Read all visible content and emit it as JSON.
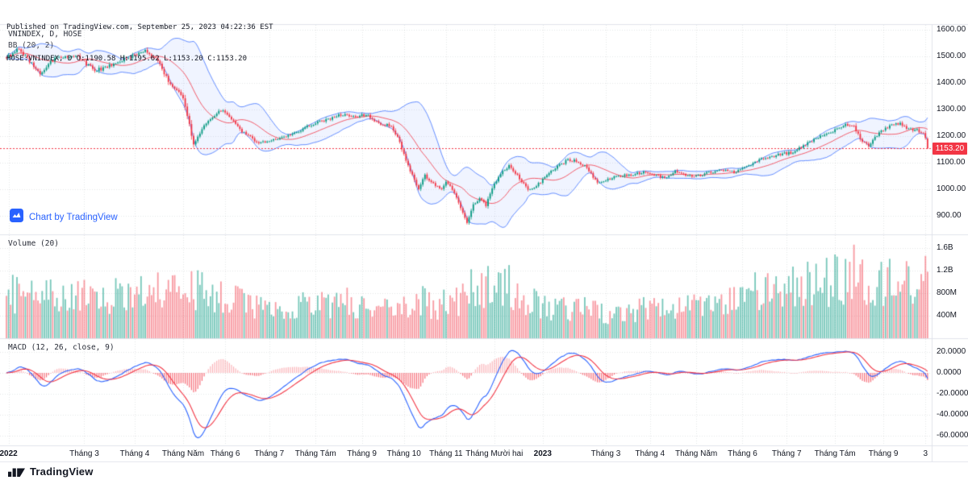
{
  "header": {
    "published_line": "Published on TradingView.com, September 25, 2023 04:22:36 EST",
    "symbol_line": "HOSE:VNINDEX, D O:1190.58 H:1195.62 L:1153.20 C:1153.20"
  },
  "price_panel": {
    "legend_symbol": "VNINDEX, D, HOSE",
    "legend_bb": "BB (20, 2)",
    "watermark_text": "Chart by TradingView"
  },
  "volume_panel": {
    "legend": "Volume (20)"
  },
  "macd_panel": {
    "legend": "MACD (12, 26, close, 9)"
  },
  "footer": {
    "brand": "TradingView"
  },
  "colors": {
    "up": "#089981",
    "down": "#f23645",
    "bb_line": "rgba(41,98,255,0.8)",
    "bb_fill": "rgba(41,98,255,0.07)",
    "bb_basis": "rgba(242,54,69,0.9)",
    "macd_line": "#2962ff",
    "macd_signal": "#f23645",
    "hist_pos": "rgba(242,54,69,0.38)",
    "hist_neg": "rgba(242,54,69,0.72)",
    "vol_up": "rgba(8,153,129,0.55)",
    "vol_down": "rgba(242,54,69,0.5)",
    "grid": "rgba(42,46,57,0.12)",
    "divider": "#e0e3eb",
    "last_price": "#f23645"
  },
  "chart_data": {
    "type": "candlestick",
    "title": "VNINDEX, D, HOSE",
    "panels": [
      "price+bollinger(20,2)",
      "volume(20)",
      "macd(12,26,close,9)"
    ],
    "symbol": "VNINDEX",
    "interval": "D",
    "exchange": "HOSE",
    "days_total": 439,
    "render_seed": 5,
    "last_candle": {
      "open": 1190.58,
      "high": 1195.62,
      "low": 1153.2,
      "close": 1153.2
    },
    "last_price": 1153.2,
    "last_price_label": "1153.20",
    "indicators": {
      "bollinger": {
        "length": 20,
        "mult": 2
      },
      "volume_ma_length": 20,
      "macd": {
        "fast": 12,
        "slow": 26,
        "source": "close",
        "signal": 9
      }
    },
    "price_anchors": [
      [
        0,
        1498
      ],
      [
        6,
        1526
      ],
      [
        16,
        1438
      ],
      [
        24,
        1500
      ],
      [
        34,
        1498
      ],
      [
        42,
        1446
      ],
      [
        50,
        1466
      ],
      [
        58,
        1498
      ],
      [
        66,
        1524
      ],
      [
        72,
        1482
      ],
      [
        79,
        1380
      ],
      [
        84,
        1348
      ],
      [
        89,
        1171
      ],
      [
        94,
        1240
      ],
      [
        100,
        1288
      ],
      [
        104,
        1292
      ],
      [
        112,
        1218
      ],
      [
        120,
        1172
      ],
      [
        128,
        1186
      ],
      [
        136,
        1206
      ],
      [
        144,
        1242
      ],
      [
        152,
        1262
      ],
      [
        160,
        1282
      ],
      [
        166,
        1275
      ],
      [
        171,
        1282
      ],
      [
        177,
        1250
      ],
      [
        183,
        1238
      ],
      [
        187,
        1180
      ],
      [
        189,
        1130
      ],
      [
        191,
        1086
      ],
      [
        196,
        1000
      ],
      [
        199,
        1052
      ],
      [
        203,
        1022
      ],
      [
        207,
        997
      ],
      [
        209,
        1027
      ],
      [
        212,
        1000
      ],
      [
        215,
        947
      ],
      [
        219,
        876
      ],
      [
        222,
        940
      ],
      [
        225,
        965
      ],
      [
        228,
        940
      ],
      [
        231,
        1005
      ],
      [
        235,
        1060
      ],
      [
        239,
        1088
      ],
      [
        244,
        1042
      ],
      [
        248,
        1000
      ],
      [
        252,
        1012
      ],
      [
        255,
        1035
      ],
      [
        261,
        1080
      ],
      [
        267,
        1110
      ],
      [
        271,
        1108
      ],
      [
        275,
        1088
      ],
      [
        281,
        1025
      ],
      [
        285,
        1035
      ],
      [
        291,
        1050
      ],
      [
        297,
        1055
      ],
      [
        303,
        1062
      ],
      [
        308,
        1055
      ],
      [
        313,
        1043
      ],
      [
        318,
        1068
      ],
      [
        323,
        1052
      ],
      [
        328,
        1048
      ],
      [
        334,
        1064
      ],
      [
        340,
        1070
      ],
      [
        346,
        1066
      ],
      [
        351,
        1080
      ],
      [
        357,
        1108
      ],
      [
        363,
        1122
      ],
      [
        369,
        1132
      ],
      [
        373,
        1138
      ],
      [
        378,
        1158
      ],
      [
        384,
        1186
      ],
      [
        390,
        1212
      ],
      [
        394,
        1222
      ],
      [
        399,
        1242
      ],
      [
        403,
        1234
      ],
      [
        407,
        1180
      ],
      [
        410,
        1166
      ],
      [
        414,
        1202
      ],
      [
        417,
        1226
      ],
      [
        421,
        1243
      ],
      [
        425,
        1247
      ],
      [
        429,
        1228
      ],
      [
        433,
        1222
      ],
      [
        436,
        1212
      ],
      [
        437,
        1193
      ],
      [
        438,
        1153.2
      ]
    ],
    "volume_anchors_millions": [
      [
        0,
        780
      ],
      [
        15,
        820
      ],
      [
        30,
        760
      ],
      [
        45,
        700
      ],
      [
        60,
        780
      ],
      [
        72,
        820
      ],
      [
        84,
        760
      ],
      [
        89,
        900
      ],
      [
        100,
        740
      ],
      [
        112,
        620
      ],
      [
        120,
        520
      ],
      [
        130,
        480
      ],
      [
        140,
        560
      ],
      [
        152,
        620
      ],
      [
        160,
        640
      ],
      [
        170,
        560
      ],
      [
        180,
        520
      ],
      [
        189,
        580
      ],
      [
        196,
        660
      ],
      [
        205,
        600
      ],
      [
        215,
        700
      ],
      [
        219,
        820
      ],
      [
        225,
        900
      ],
      [
        231,
        880
      ],
      [
        239,
        940
      ],
      [
        248,
        700
      ],
      [
        255,
        520
      ],
      [
        265,
        560
      ],
      [
        275,
        540
      ],
      [
        285,
        460
      ],
      [
        295,
        440
      ],
      [
        305,
        520
      ],
      [
        315,
        560
      ],
      [
        328,
        580
      ],
      [
        340,
        640
      ],
      [
        351,
        780
      ],
      [
        360,
        860
      ],
      [
        370,
        900
      ],
      [
        380,
        960
      ],
      [
        390,
        1000
      ],
      [
        399,
        1080
      ],
      [
        403,
        1250
      ],
      [
        407,
        1000
      ],
      [
        414,
        940
      ],
      [
        421,
        1060
      ],
      [
        429,
        1000
      ],
      [
        434,
        880
      ],
      [
        438,
        1150
      ]
    ],
    "volume_overrides_millions": [
      [
        403,
        1660
      ],
      [
        438,
        1180
      ]
    ],
    "price_axis": {
      "min": 830,
      "max": 1620,
      "ticks": [
        {
          "label": "1600.00",
          "value": 1600
        },
        {
          "label": "1500.00",
          "value": 1500
        },
        {
          "label": "1400.00",
          "value": 1400
        },
        {
          "label": "1300.00",
          "value": 1300
        },
        {
          "label": "1200.00",
          "value": 1200
        },
        {
          "label": "1100.00",
          "value": 1100
        },
        {
          "label": "1000.00",
          "value": 1000
        },
        {
          "label": "900.00",
          "value": 900
        }
      ]
    },
    "volume_axis": {
      "ticks": [
        {
          "label": "1.6B",
          "value": 1600
        },
        {
          "label": "1.2B",
          "value": 1200
        },
        {
          "label": "800M",
          "value": 800
        },
        {
          "label": "400M",
          "value": 400
        }
      ]
    },
    "macd_axis": {
      "ticks": [
        {
          "label": "20.0000",
          "value": 20
        },
        {
          "label": "0.0000",
          "value": 0
        },
        {
          "label": "-20.0000",
          "value": -20
        },
        {
          "label": "-40.0000",
          "value": -40
        },
        {
          "label": "-60.0000",
          "value": -60
        }
      ]
    },
    "time_axis": {
      "labels": [
        {
          "text": "2022",
          "day": 1,
          "year": true
        },
        {
          "text": "Tháng 3",
          "day": 37
        },
        {
          "text": "Tháng 4",
          "day": 61
        },
        {
          "text": "Tháng Năm",
          "day": 84
        },
        {
          "text": "Tháng 6",
          "day": 104
        },
        {
          "text": "Tháng 7",
          "day": 125
        },
        {
          "text": "Tháng Tám",
          "day": 147
        },
        {
          "text": "Tháng 9",
          "day": 169
        },
        {
          "text": "Tháng 10",
          "day": 189
        },
        {
          "text": "Tháng 11",
          "day": 209
        },
        {
          "text": "Tháng Mười hai",
          "day": 232
        },
        {
          "text": "2023",
          "day": 255,
          "year": true
        },
        {
          "text": "Tháng 3",
          "day": 285
        },
        {
          "text": "Tháng 4",
          "day": 306
        },
        {
          "text": "Tháng Năm",
          "day": 328
        },
        {
          "text": "Tháng 6",
          "day": 350
        },
        {
          "text": "Tháng 7",
          "day": 371
        },
        {
          "text": "Tháng Tám",
          "day": 394
        },
        {
          "text": "Tháng 9",
          "day": 417
        },
        {
          "text": "3",
          "day": 437
        }
      ]
    }
  }
}
